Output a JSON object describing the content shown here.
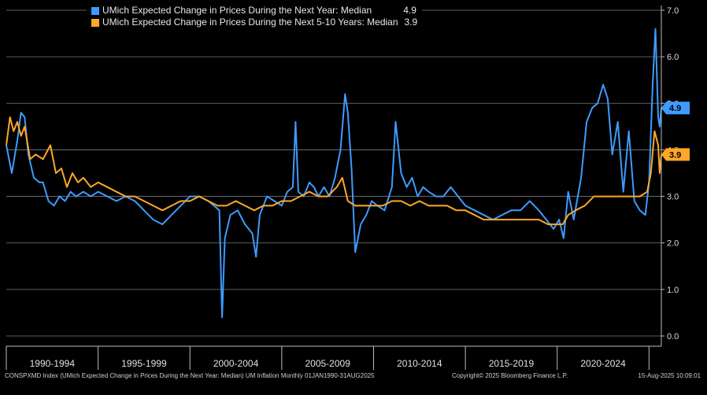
{
  "legend": {
    "series1_name": "UMich Expected Change in Prices During the Next Year: Median",
    "series1_value": "4.9",
    "series2_name": "UMich Expected Change in Prices During the Next 5-10 Years: Median",
    "series2_value": "3.9"
  },
  "footer": {
    "left": "CONSPXMD Index (UMich Expected Change in Prices During the Next Year: Median) UM Inflation  Monthly 01JAN1990-31AUG2025",
    "middle": "Copyright© 2025 Bloomberg Finance L.P.",
    "right": "15-Aug-2025 10:09:01"
  },
  "chart_data": {
    "type": "line",
    "colors": {
      "series1": "#3d9bff",
      "series2": "#ffa726",
      "background": "#000000",
      "grid": "#7a7a7a"
    },
    "ylim": [
      0,
      7
    ],
    "yticks": [
      "0.0",
      "1.0",
      "2.0",
      "3.0",
      "4.0",
      "5.0",
      "6.0",
      "7.0"
    ],
    "x_range": [
      1990.0,
      2025.67
    ],
    "xtick_labels": [
      "1990-1994",
      "1995-1999",
      "2000-2004",
      "2005-2009",
      "2010-2014",
      "2015-2019",
      "2020-2024"
    ],
    "grid": true,
    "legend_position": "top-left",
    "series": [
      {
        "name": "UMich Expected Change in Prices During the Next Year: Median",
        "last_value": "4.9",
        "points": [
          [
            1990.0,
            4.1
          ],
          [
            1990.3,
            3.5
          ],
          [
            1990.6,
            4.2
          ],
          [
            1990.8,
            4.8
          ],
          [
            1991.0,
            4.7
          ],
          [
            1991.2,
            3.9
          ],
          [
            1991.5,
            3.4
          ],
          [
            1991.8,
            3.3
          ],
          [
            1992.0,
            3.3
          ],
          [
            1992.3,
            2.9
          ],
          [
            1992.6,
            2.8
          ],
          [
            1992.9,
            3.0
          ],
          [
            1993.2,
            2.9
          ],
          [
            1993.5,
            3.1
          ],
          [
            1993.8,
            3.0
          ],
          [
            1994.2,
            3.1
          ],
          [
            1994.6,
            3.0
          ],
          [
            1995.0,
            3.1
          ],
          [
            1995.5,
            3.0
          ],
          [
            1996.0,
            2.9
          ],
          [
            1996.5,
            3.0
          ],
          [
            1997.0,
            2.9
          ],
          [
            1997.5,
            2.7
          ],
          [
            1998.0,
            2.5
          ],
          [
            1998.5,
            2.4
          ],
          [
            1999.0,
            2.6
          ],
          [
            1999.5,
            2.8
          ],
          [
            2000.0,
            3.0
          ],
          [
            2000.5,
            3.0
          ],
          [
            2001.0,
            2.9
          ],
          [
            2001.3,
            2.8
          ],
          [
            2001.6,
            2.7
          ],
          [
            2001.75,
            0.4
          ],
          [
            2001.9,
            2.1
          ],
          [
            2002.2,
            2.6
          ],
          [
            2002.6,
            2.7
          ],
          [
            2003.0,
            2.4
          ],
          [
            2003.4,
            2.2
          ],
          [
            2003.6,
            1.7
          ],
          [
            2003.8,
            2.6
          ],
          [
            2004.2,
            3.0
          ],
          [
            2004.6,
            2.9
          ],
          [
            2005.0,
            2.8
          ],
          [
            2005.3,
            3.1
          ],
          [
            2005.6,
            3.2
          ],
          [
            2005.75,
            4.6
          ],
          [
            2005.9,
            3.1
          ],
          [
            2006.2,
            3.0
          ],
          [
            2006.5,
            3.3
          ],
          [
            2006.75,
            3.2
          ],
          [
            2007.0,
            3.0
          ],
          [
            2007.3,
            3.2
          ],
          [
            2007.6,
            3.0
          ],
          [
            2007.9,
            3.4
          ],
          [
            2008.2,
            4.0
          ],
          [
            2008.45,
            5.2
          ],
          [
            2008.6,
            4.8
          ],
          [
            2008.8,
            3.6
          ],
          [
            2009.0,
            1.8
          ],
          [
            2009.3,
            2.4
          ],
          [
            2009.6,
            2.6
          ],
          [
            2009.9,
            2.9
          ],
          [
            2010.2,
            2.8
          ],
          [
            2010.6,
            2.7
          ],
          [
            2011.0,
            3.2
          ],
          [
            2011.2,
            4.6
          ],
          [
            2011.5,
            3.5
          ],
          [
            2011.8,
            3.2
          ],
          [
            2012.1,
            3.4
          ],
          [
            2012.4,
            3.0
          ],
          [
            2012.7,
            3.2
          ],
          [
            2013.0,
            3.1
          ],
          [
            2013.4,
            3.0
          ],
          [
            2013.8,
            3.0
          ],
          [
            2014.2,
            3.2
          ],
          [
            2014.6,
            3.0
          ],
          [
            2015.0,
            2.8
          ],
          [
            2015.5,
            2.7
          ],
          [
            2016.0,
            2.6
          ],
          [
            2016.5,
            2.5
          ],
          [
            2017.0,
            2.6
          ],
          [
            2017.5,
            2.7
          ],
          [
            2018.0,
            2.7
          ],
          [
            2018.5,
            2.9
          ],
          [
            2019.0,
            2.7
          ],
          [
            2019.4,
            2.5
          ],
          [
            2019.8,
            2.3
          ],
          [
            2020.1,
            2.5
          ],
          [
            2020.35,
            2.1
          ],
          [
            2020.6,
            3.1
          ],
          [
            2020.9,
            2.5
          ],
          [
            2021.3,
            3.4
          ],
          [
            2021.6,
            4.6
          ],
          [
            2021.9,
            4.9
          ],
          [
            2022.2,
            5.0
          ],
          [
            2022.5,
            5.4
          ],
          [
            2022.75,
            5.1
          ],
          [
            2023.0,
            3.9
          ],
          [
            2023.3,
            4.6
          ],
          [
            2023.6,
            3.1
          ],
          [
            2023.9,
            4.4
          ],
          [
            2024.2,
            2.9
          ],
          [
            2024.5,
            2.7
          ],
          [
            2024.8,
            2.6
          ],
          [
            2025.0,
            3.3
          ],
          [
            2025.2,
            5.4
          ],
          [
            2025.35,
            6.6
          ],
          [
            2025.5,
            4.7
          ],
          [
            2025.58,
            4.5
          ],
          [
            2025.67,
            4.9
          ]
        ]
      },
      {
        "name": "UMich Expected Change in Prices During the Next 5-10 Years: Median",
        "last_value": "3.9",
        "points": [
          [
            1990.0,
            4.1
          ],
          [
            1990.2,
            4.7
          ],
          [
            1990.4,
            4.4
          ],
          [
            1990.6,
            4.6
          ],
          [
            1990.8,
            4.3
          ],
          [
            1991.0,
            4.5
          ],
          [
            1991.3,
            3.8
          ],
          [
            1991.6,
            3.9
          ],
          [
            1992.0,
            3.8
          ],
          [
            1992.4,
            4.1
          ],
          [
            1992.7,
            3.5
          ],
          [
            1993.0,
            3.6
          ],
          [
            1993.3,
            3.2
          ],
          [
            1993.6,
            3.5
          ],
          [
            1993.9,
            3.3
          ],
          [
            1994.2,
            3.4
          ],
          [
            1994.6,
            3.2
          ],
          [
            1995.0,
            3.3
          ],
          [
            1995.5,
            3.2
          ],
          [
            1996.0,
            3.1
          ],
          [
            1996.5,
            3.0
          ],
          [
            1997.0,
            3.0
          ],
          [
            1997.5,
            2.9
          ],
          [
            1998.0,
            2.8
          ],
          [
            1998.5,
            2.7
          ],
          [
            1999.0,
            2.8
          ],
          [
            1999.5,
            2.9
          ],
          [
            2000.0,
            2.9
          ],
          [
            2000.5,
            3.0
          ],
          [
            2001.0,
            2.9
          ],
          [
            2001.5,
            2.8
          ],
          [
            2002.0,
            2.8
          ],
          [
            2002.5,
            2.9
          ],
          [
            2003.0,
            2.8
          ],
          [
            2003.5,
            2.7
          ],
          [
            2004.0,
            2.8
          ],
          [
            2004.5,
            2.8
          ],
          [
            2005.0,
            2.9
          ],
          [
            2005.5,
            2.9
          ],
          [
            2006.0,
            3.0
          ],
          [
            2006.5,
            3.1
          ],
          [
            2007.0,
            3.0
          ],
          [
            2007.5,
            3.0
          ],
          [
            2008.0,
            3.2
          ],
          [
            2008.3,
            3.4
          ],
          [
            2008.6,
            2.9
          ],
          [
            2009.0,
            2.8
          ],
          [
            2009.5,
            2.8
          ],
          [
            2010.0,
            2.8
          ],
          [
            2010.5,
            2.8
          ],
          [
            2011.0,
            2.9
          ],
          [
            2011.5,
            2.9
          ],
          [
            2012.0,
            2.8
          ],
          [
            2012.5,
            2.9
          ],
          [
            2013.0,
            2.8
          ],
          [
            2013.5,
            2.8
          ],
          [
            2014.0,
            2.8
          ],
          [
            2014.5,
            2.7
          ],
          [
            2015.0,
            2.7
          ],
          [
            2015.5,
            2.6
          ],
          [
            2016.0,
            2.5
          ],
          [
            2016.5,
            2.5
          ],
          [
            2017.0,
            2.5
          ],
          [
            2017.5,
            2.5
          ],
          [
            2018.0,
            2.5
          ],
          [
            2018.5,
            2.5
          ],
          [
            2019.0,
            2.5
          ],
          [
            2019.5,
            2.4
          ],
          [
            2020.0,
            2.4
          ],
          [
            2020.3,
            2.4
          ],
          [
            2020.6,
            2.6
          ],
          [
            2021.0,
            2.7
          ],
          [
            2021.5,
            2.8
          ],
          [
            2022.0,
            3.0
          ],
          [
            2022.5,
            3.0
          ],
          [
            2023.0,
            3.0
          ],
          [
            2023.5,
            3.0
          ],
          [
            2024.0,
            3.0
          ],
          [
            2024.5,
            3.0
          ],
          [
            2024.9,
            3.1
          ],
          [
            2025.1,
            3.5
          ],
          [
            2025.3,
            4.4
          ],
          [
            2025.5,
            4.1
          ],
          [
            2025.58,
            3.5
          ],
          [
            2025.67,
            3.9
          ]
        ]
      }
    ]
  }
}
